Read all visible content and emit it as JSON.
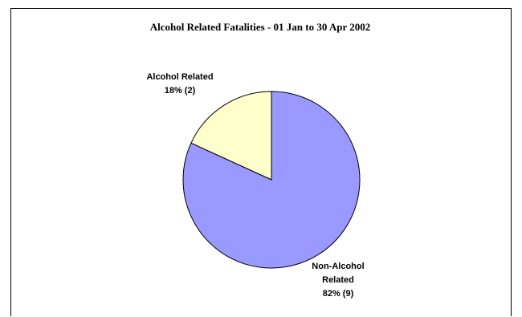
{
  "chart_data": {
    "type": "pie",
    "title": "Alcohol Related Fatalities - 01 Jan to 30 Apr 2002",
    "slices": [
      {
        "label": "Alcohol Related",
        "value": 2,
        "percent": "18%",
        "display": "18% (2)",
        "color": "#ffffcc"
      },
      {
        "label": "Non-Alcohol Related",
        "value": 9,
        "percent": "82%",
        "display": "82% (9)",
        "color": "#9999ff"
      }
    ],
    "legend": "none",
    "stroke_color": "#000000"
  }
}
